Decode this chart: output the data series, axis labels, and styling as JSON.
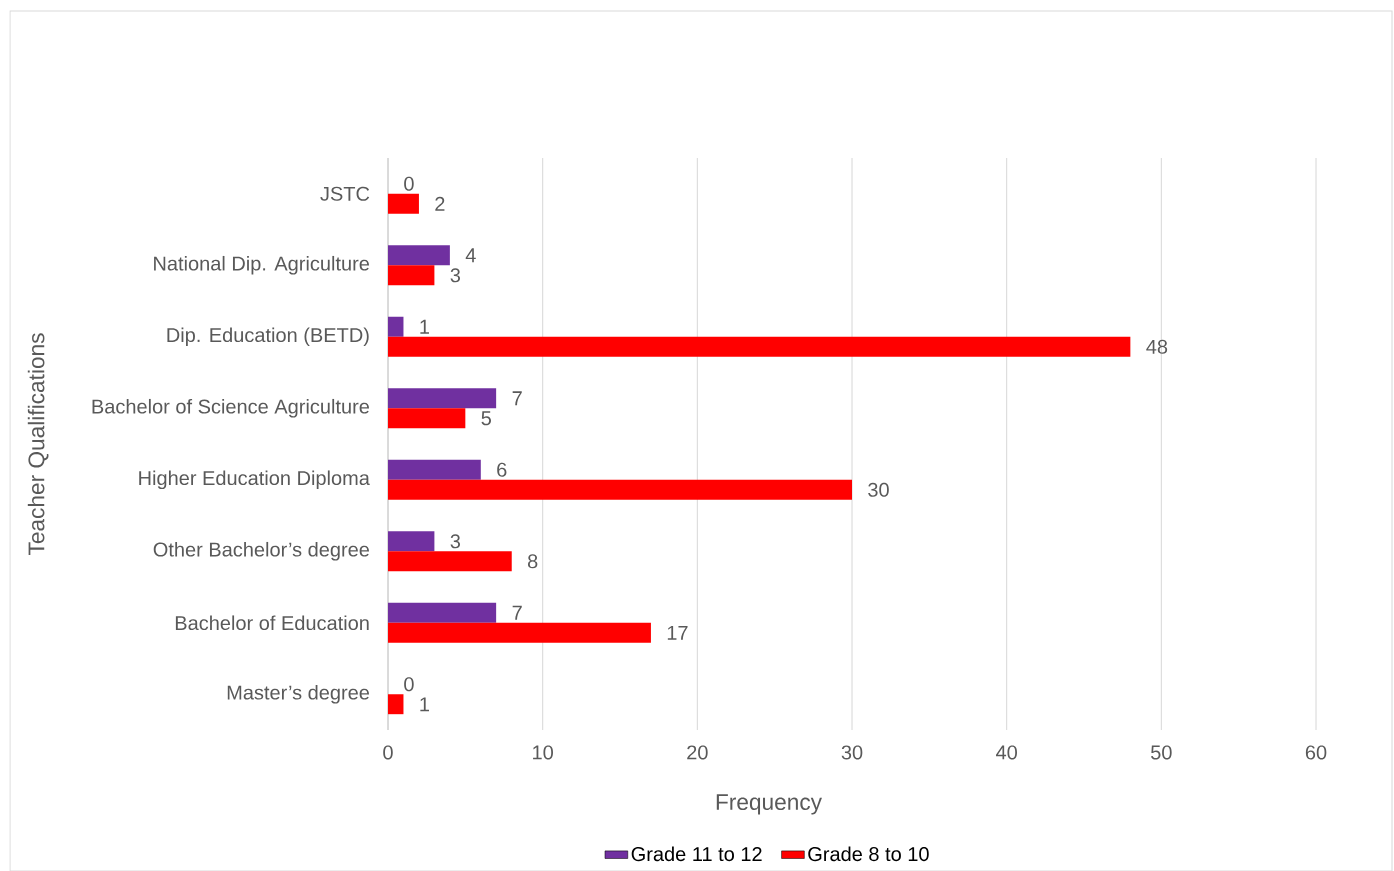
{
  "chart_data": {
    "type": "bar",
    "orientation": "horizontal",
    "categories": [
      "JSTC",
      "National Dip. Agriculture",
      "Dip. Education (BETD)",
      "Bachelor of Science Agriculture",
      "Higher Education Diploma",
      "Other Bachelor’s degree",
      "Bachelor of Education",
      "Master’s degree"
    ],
    "series": [
      {
        "name": "Grade 11 to 12",
        "color": "#7030a0",
        "values": [
          0,
          4,
          1,
          7,
          6,
          3,
          7,
          0
        ]
      },
      {
        "name": "Grade 8  to 10",
        "color": "#ff0000",
        "values": [
          2,
          3,
          48,
          5,
          30,
          8,
          17,
          1
        ]
      }
    ],
    "xlabel": "Frequency",
    "ylabel": "Teacher Qualifications",
    "xlim": [
      0,
      60
    ],
    "xticks": [
      0,
      10,
      20,
      30,
      40,
      50,
      60
    ],
    "grid": "x",
    "legend": "bottom",
    "data_labels": true
  }
}
